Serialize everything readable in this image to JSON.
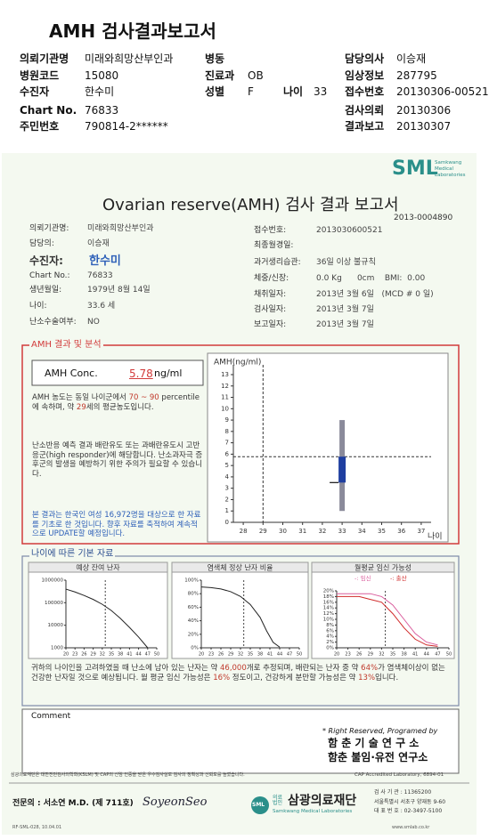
{
  "header": {
    "title": "AMH 검사결과보고서",
    "institution": {
      "label": "의뢰기관명",
      "value": "미래와희망산부인과"
    },
    "ward": {
      "label": "병동"
    },
    "doctor": {
      "label": "담당의사",
      "value": "이승재"
    },
    "hospital_code": {
      "label": "병원코드",
      "value": "15080"
    },
    "department": {
      "label": "진료과",
      "value": "OB"
    },
    "clinical_info": {
      "label": "임상정보",
      "value": "287795"
    },
    "patient": {
      "label": "수진자",
      "value": "한수미"
    },
    "sex": {
      "label": "성별",
      "value": "F"
    },
    "age": {
      "label": "나이",
      "value": "33"
    },
    "receipt_no": {
      "label": "접수번호",
      "value": "20130306-00521"
    },
    "chart_no": {
      "label": "Chart No.",
      "value": "76833"
    },
    "request_date": {
      "label": "검사의뢰",
      "value": "20130306"
    },
    "id_no": {
      "label": "주민번호",
      "value": "790814-2******"
    },
    "report_date": {
      "label": "결과보고",
      "value": "20130307"
    }
  },
  "report": {
    "brand": "SML",
    "brand_sub": [
      "Samkwang",
      "Medical",
      "Laboratories"
    ],
    "title": "Ovarian reserve(AMH) 검사 결과 보고서",
    "doc_no": "2013-0004890",
    "left_info": [
      {
        "label": "의뢰기관명:",
        "value": "미래와희망산부인과"
      },
      {
        "label": "담당의:",
        "value": "이승재"
      },
      {
        "label": "수진자:",
        "value": "한수미"
      },
      {
        "label": "Chart No.:",
        "value": "76833"
      },
      {
        "label": "생년월일:",
        "value": "1979년 8월 14일"
      },
      {
        "label": "나이:",
        "value": "33.6 세"
      },
      {
        "label": "난소수술여부:",
        "value": "NO"
      }
    ],
    "right_info": [
      {
        "label": "접수번호:",
        "value": "2013030600521"
      },
      {
        "label": "최종월경일:"
      },
      {
        "label": "과거생리습관:",
        "value": "36일 이상 불규칙"
      },
      {
        "label": "체중/신장:",
        "value": "0.0 Kg      0cm    BMI:  0.00"
      },
      {
        "label": "채취일자:",
        "value": "2013년 3월 6일   (MCD # 0 일)"
      },
      {
        "label": "검사일자:",
        "value": "2013년 3월 7일"
      },
      {
        "label": "보고일자:",
        "value": "2013년 3월 7일"
      }
    ]
  },
  "amh": {
    "heading": "AMH 결과 및 분석",
    "conc_label": "AMH Conc.",
    "conc_value": "5.78",
    "conc_unit": "ng/ml",
    "para1": [
      "AMH 농도는 동일 나이군에서 ",
      "70 ~ 90",
      " percentile에 속하며, 약 ",
      "29",
      "세의 평균농도입니다."
    ],
    "para2": "난소반응 예측 결과 배란유도 또는 과배란유도시 고반응군(high responder)에 해당합니다. 난소과자극 증후군의 발생을 예방하기 위한 주의가 필요할 수 있습니다.",
    "para3": "본 결과는 한국인 여성 16,972명을 대상으로 한 자료를 기초로 한 것입니다. 향후 자료를 축적하여 계속적으로 UPDATE할 예정입니다.",
    "chart": {
      "type": "box",
      "y_label": "AMH(ng/ml)",
      "x_label": "나이",
      "xlim": [
        27.5,
        37.5
      ],
      "xticks": [
        28,
        29,
        30,
        31,
        32,
        33,
        34,
        35,
        36,
        37
      ],
      "ylim": [
        0,
        13
      ],
      "yticks": [
        0,
        1,
        2,
        3,
        4,
        5,
        6,
        7,
        8,
        9,
        10,
        11,
        12,
        13
      ],
      "reference": {
        "age": 29,
        "value": 5.78
      },
      "marker": {
        "x": 33,
        "whisker": [
          1,
          9
        ],
        "box": [
          3.5,
          5.78
        ]
      },
      "colors": {
        "whisker": "#8a8a9a",
        "box": "#1f3fa0"
      }
    }
  },
  "basic": {
    "heading": "나이에 따른 기본 자료",
    "charts": [
      {
        "type": "line",
        "title": "예상 잔여 난자",
        "log": true,
        "xlim": [
          20,
          50
        ],
        "xticks": [
          20,
          23,
          26,
          29,
          32,
          35,
          38,
          41,
          44,
          47,
          50
        ],
        "ylim": [
          1000,
          1000000
        ],
        "yticks": [
          1000,
          10000,
          100000,
          1000000
        ],
        "marker_x": 33,
        "x": [
          20,
          23,
          26,
          29,
          32,
          35,
          38,
          41,
          44,
          47
        ],
        "series": [
          {
            "color": "#222222",
            "values": [
              400000,
              300000,
              210000,
              140000,
              85000,
              45000,
              20000,
              8000,
              3000,
              1000
            ]
          }
        ]
      },
      {
        "type": "line",
        "title": "염색체 정상 난자 비율",
        "log": false,
        "xlim": [
          20,
          50
        ],
        "xticks": [
          20,
          23,
          26,
          29,
          32,
          35,
          38,
          41,
          44,
          47,
          50
        ],
        "ylim": [
          0,
          100
        ],
        "yticks": [
          {
            "value": 0,
            "label": "0%"
          },
          {
            "value": 20,
            "label": "20%"
          },
          {
            "value": 40,
            "label": "40%"
          },
          {
            "value": 60,
            "label": "60%"
          },
          {
            "value": 80,
            "label": "80%"
          },
          {
            "value": 100,
            "label": "100%"
          }
        ],
        "marker_x": 33,
        "x": [
          20,
          23,
          26,
          29,
          32,
          35,
          38,
          40,
          42,
          44
        ],
        "series": [
          {
            "color": "#222222",
            "values": [
              90,
              89,
              87,
              83,
              76,
              64,
              45,
              25,
              8,
              1
            ]
          }
        ]
      },
      {
        "type": "line",
        "title": "월평균 임신 가능성",
        "log": false,
        "xlim": [
          20,
          50
        ],
        "xticks": [
          20,
          23,
          26,
          29,
          32,
          35,
          38,
          41,
          44,
          47,
          50
        ],
        "ylim": [
          0,
          20
        ],
        "yticks": [
          {
            "value": 0,
            "label": "0%"
          },
          {
            "value": 2,
            "label": "2%"
          },
          {
            "value": 4,
            "label": "4%"
          },
          {
            "value": 6,
            "label": "6%"
          },
          {
            "value": 8,
            "label": "8%"
          },
          {
            "value": 10,
            "label": "10%"
          },
          {
            "value": 12,
            "label": "12%"
          },
          {
            "value": 14,
            "label": "14%"
          },
          {
            "value": 16,
            "label": "16%"
          },
          {
            "value": 18,
            "label": "18%"
          },
          {
            "value": 20,
            "label": "20%"
          }
        ],
        "marker_x": 33,
        "x": [
          20,
          23,
          26,
          29,
          32,
          35,
          38,
          41,
          44,
          47
        ],
        "series": [
          {
            "name": "-: 임신",
            "color": "#d95c9c",
            "values": [
              19,
              19,
              19,
              19,
              18,
              15,
              10,
              5,
              2,
              1
            ]
          },
          {
            "name": "-: 출산",
            "color": "#d02a2a",
            "values": [
              18,
              18,
              18,
              17,
              16,
              12,
              7,
              3,
              1,
              0.5
            ]
          }
        ]
      }
    ],
    "summary": [
      "귀하의 나이인을 고려하였을 때 난소에 남아 있는 난자는 약 ",
      "46,000",
      "개로 추정되며, 배란되는 난자 중 약 ",
      "64%",
      "가 염색체이상이 없는 건강한 난자일 것으로 예상됩니다. 월 평균 임신 가능성은 ",
      "16%",
      " 정도이고, 건강하게 분만할 가능성은 약 ",
      "13%",
      "입니다."
    ]
  },
  "comment": {
    "label": "Comment",
    "credit": "* Right Reserved, Programed by",
    "org1": "함 춘 기 술 연 구 소",
    "org2": "함춘 불임·유전 연구소"
  },
  "footer": {
    "notice": "삼광의료재단은 대한진단검사의학회(KSLM) 및 CAP의 신임 인증을 받은 우수검사실로 검사의 정확성과 신뢰도를 높였습니다.",
    "cap": "CAP Accredited Laboratory, 6894-01",
    "specialist": "전문의 : 서소연 M.D. (제 711호)",
    "signature": "SoyeonSeo",
    "logo_mark": "SML",
    "logo_prefix": "의료법인",
    "logo_name": "삼광의료재단",
    "logo_sub": "Samkwang Medical Laboratories",
    "lab_code": "검 사 기 관 : 11365200",
    "address1": "서울특별시 서초구 양재동 9-60",
    "phone": "대 표 번 호 : 02-3497-5100",
    "form_no": "RF-SML-028, 10.04.01",
    "website": "www.smlab.co.kr"
  }
}
